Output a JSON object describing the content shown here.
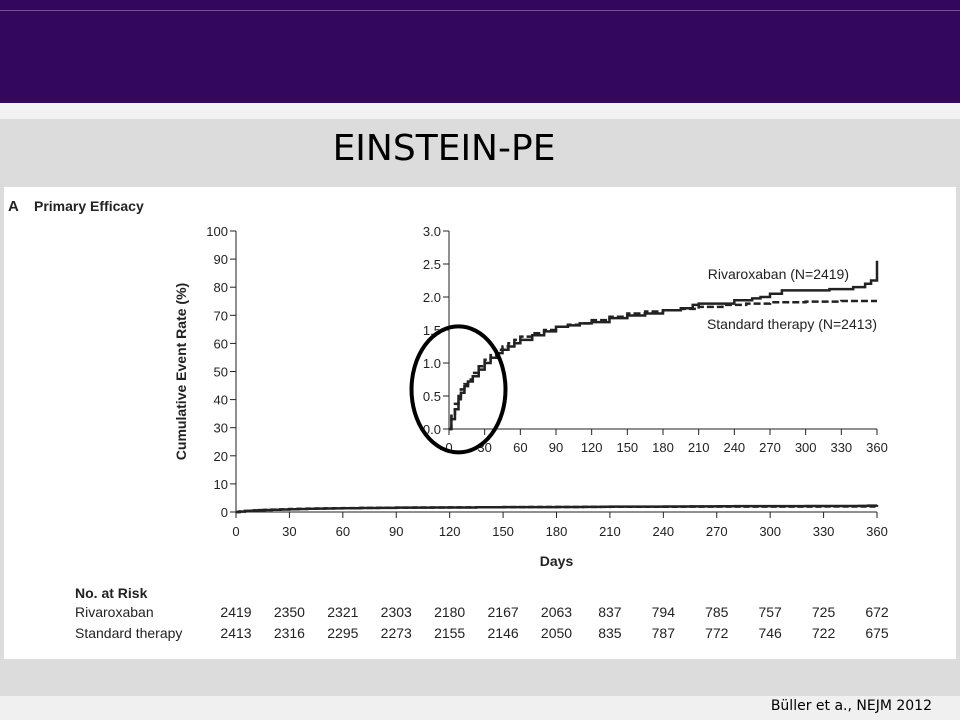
{
  "slide": {
    "title": "EINSTEIN-PE",
    "citation": "Büller et a., NEJM 2012"
  },
  "colors": {
    "header_band": "#33075e",
    "background": "#dcdcdc",
    "panel": "#ffffff",
    "ink": "#222222"
  },
  "chart_data": {
    "type": "line",
    "panel_letter": "A",
    "title": "Primary Efficacy",
    "xlabel": "Days",
    "ylabel": "Cumulative Event Rate (%)",
    "xlim": [
      0,
      360
    ],
    "ylim": [
      0,
      100
    ],
    "x_ticks": [
      0,
      30,
      60,
      90,
      120,
      150,
      180,
      210,
      240,
      270,
      300,
      330,
      360
    ],
    "y_ticks": [
      0,
      10,
      20,
      30,
      40,
      50,
      60,
      70,
      80,
      90,
      100
    ],
    "grid": false,
    "series": [
      {
        "name": "Rivaroxaban (N=2419)",
        "style": "solid",
        "x": [
          0,
          2,
          5,
          8,
          10,
          13,
          16,
          20,
          25,
          30,
          35,
          40,
          45,
          50,
          55,
          60,
          70,
          80,
          90,
          100,
          110,
          120,
          135,
          150,
          165,
          180,
          195,
          205,
          210,
          225,
          240,
          255,
          262,
          270,
          280,
          300,
          320,
          340,
          350,
          355,
          360
        ],
        "y": [
          0,
          0.15,
          0.3,
          0.45,
          0.55,
          0.65,
          0.72,
          0.8,
          0.9,
          1.0,
          1.08,
          1.15,
          1.2,
          1.25,
          1.3,
          1.35,
          1.42,
          1.48,
          1.55,
          1.57,
          1.6,
          1.62,
          1.68,
          1.72,
          1.75,
          1.8,
          1.83,
          1.88,
          1.9,
          1.9,
          1.95,
          1.98,
          2.0,
          2.05,
          2.1,
          2.1,
          2.12,
          2.15,
          2.2,
          2.25,
          2.55
        ]
      },
      {
        "name": "Standard therapy (N=2413)",
        "style": "dashed",
        "x": [
          0,
          2,
          5,
          8,
          10,
          13,
          16,
          20,
          25,
          30,
          35,
          40,
          45,
          50,
          55,
          60,
          70,
          80,
          90,
          100,
          110,
          120,
          135,
          150,
          165,
          180,
          195,
          210,
          230,
          250,
          270,
          300,
          330,
          360
        ],
        "y": [
          0,
          0.2,
          0.38,
          0.5,
          0.6,
          0.68,
          0.75,
          0.85,
          0.95,
          1.05,
          1.12,
          1.2,
          1.25,
          1.3,
          1.35,
          1.4,
          1.45,
          1.5,
          1.55,
          1.58,
          1.6,
          1.65,
          1.7,
          1.75,
          1.78,
          1.8,
          1.82,
          1.85,
          1.88,
          1.9,
          1.92,
          1.93,
          1.94,
          1.94
        ]
      }
    ],
    "inset": {
      "xlim": [
        0,
        360
      ],
      "ylim": [
        0,
        3.0
      ],
      "x_ticks": [
        0,
        30,
        60,
        90,
        120,
        150,
        180,
        210,
        240,
        270,
        300,
        330,
        360
      ],
      "y_ticks": [
        "0.0",
        "0.5",
        "1.0",
        "1.5",
        "2.0",
        "2.5",
        "3.0"
      ],
      "highlight": "circle around early days (0–30) of the inset"
    },
    "risk_table": {
      "heading": "No. at Risk",
      "rows": [
        {
          "label": "Rivaroxaban",
          "values": [
            2419,
            2350,
            2321,
            2303,
            2180,
            2167,
            2063,
            837,
            794,
            785,
            757,
            725,
            672
          ]
        },
        {
          "label": "Standard therapy",
          "values": [
            2413,
            2316,
            2295,
            2273,
            2155,
            2146,
            2050,
            835,
            787,
            772,
            746,
            722,
            675
          ]
        }
      ]
    }
  }
}
